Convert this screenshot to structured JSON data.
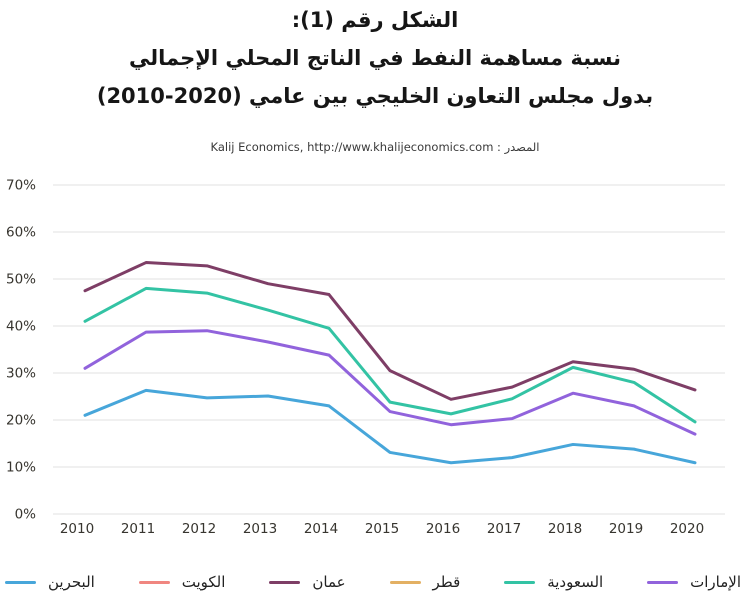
{
  "title": {
    "line1": "الشكل رقم (1):",
    "line2": "نسبة مساهمة النفط في الناتج المحلي الإجمالي",
    "line3": "بدول مجلس التعاون الخليجي بين عامي (2020-2010)"
  },
  "source": "Kalij Economics, http://www.khalijeconomics.com : المصدر",
  "chart_data": {
    "type": "line",
    "title": "نسبة مساهمة النفط في الناتج المحلي الإجمالي بدول مجلس التعاون الخليجي بين عامي (2010-2020)",
    "categories": [
      "2010",
      "2011",
      "2012",
      "2013",
      "2014",
      "2015",
      "2016",
      "2017",
      "2018",
      "2019",
      "2020"
    ],
    "series": [
      {
        "id": "bahrain",
        "name": "البحرين",
        "color": "#47a6da",
        "values": [
          21.0,
          26.3,
          24.7,
          25.1,
          23.0,
          13.1,
          10.9,
          12.0,
          14.8,
          13.8,
          10.9
        ]
      },
      {
        "id": "kuwait",
        "name": "الكويت",
        "color": "#f08680",
        "values": null
      },
      {
        "id": "oman",
        "name": "عمان",
        "color": "#7e3e66",
        "values": [
          47.5,
          53.5,
          52.8,
          49.0,
          46.7,
          30.5,
          24.4,
          27.0,
          32.4,
          30.8,
          26.4
        ]
      },
      {
        "id": "qatar",
        "name": "قطر",
        "color": "#e3b063",
        "values": null
      },
      {
        "id": "saudi-arabia",
        "name": "السعودية",
        "color": "#33c3a4",
        "values": [
          41.0,
          48.0,
          47.0,
          43.4,
          39.5,
          23.8,
          21.3,
          24.5,
          31.2,
          28.0,
          19.6
        ]
      },
      {
        "id": "uae",
        "name": "الإمارات",
        "color": "#9163dc",
        "values": [
          31.0,
          38.7,
          39.0,
          36.6,
          33.8,
          21.8,
          19.0,
          20.3,
          25.7,
          23.0,
          17.0
        ]
      }
    ],
    "ylim": [
      0,
      70
    ],
    "ytick_step": 10,
    "ytick_labels": [
      "0%",
      "10%",
      "20%",
      "30%",
      "40%",
      "50%",
      "60%",
      "70%"
    ],
    "xlabel": "",
    "ylabel": "",
    "grid": true,
    "legend_position": "bottom",
    "grid_color": "#e2e2e2",
    "axis_text_color": "#37352f"
  }
}
